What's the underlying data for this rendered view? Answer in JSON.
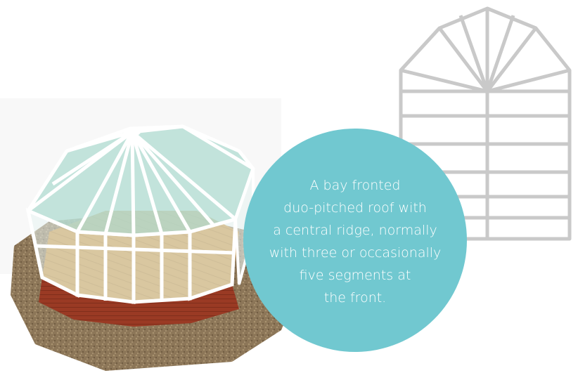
{
  "callout": {
    "lines": [
      "A bay fronted",
      "duo-pitched roof with",
      "a central ridge, normally",
      "with three or occasionally",
      "five segments at",
      "the front."
    ],
    "background_color": "#71c8d0",
    "text_color": "#ffffff"
  },
  "illustrations": {
    "conservatory": "victorian-conservatory-3d-render",
    "plan": "bay-front-roof-plan-outline"
  }
}
